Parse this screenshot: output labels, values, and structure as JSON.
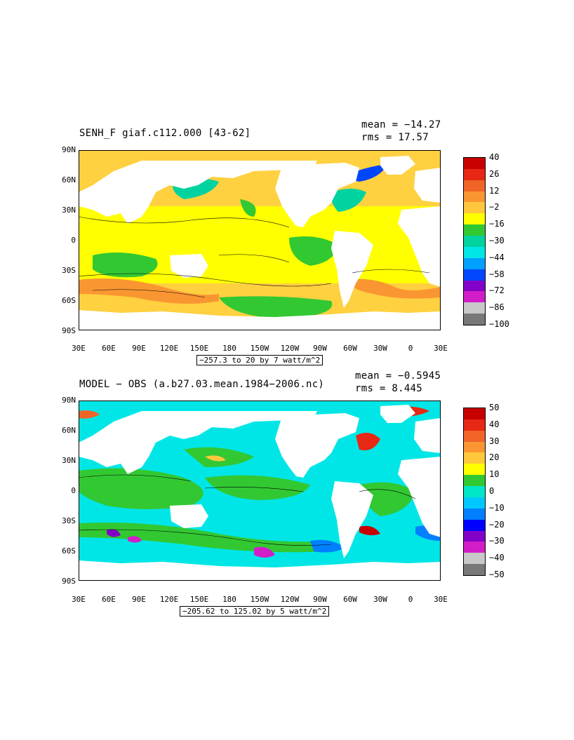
{
  "panels": [
    {
      "title": "SENH_F giaf.c112.000 [43-62]",
      "mean_label": "mean = −14.27",
      "rms_label": "rms = 17.57",
      "range_label": "−257.3 to 20 by 7 watt/m^2",
      "colorbar_labels": [
        "40",
        "26",
        "12",
        "−2",
        "−16",
        "−30",
        "−44",
        "−58",
        "−72",
        "−86",
        "−100"
      ],
      "colorbar_colors": [
        "#c80000",
        "#e62814",
        "#f06428",
        "#fa9632",
        "#ffc83c",
        "#ffff00",
        "#32c832",
        "#00d2a0",
        "#00e6e6",
        "#00a0ff",
        "#0046ff",
        "#8200c8",
        "#d21ec8",
        "#c8c8c8",
        "#787878"
      ],
      "ocean_color": "#ffd040"
    },
    {
      "title": "MODEL − OBS (a.b27.03.mean.1984−2006.nc)",
      "mean_label": "mean = −0.5945",
      "rms_label": "rms = 8.445",
      "range_label": "−205.62 to 125.02 by 5 watt/m^2",
      "colorbar_labels": [
        "50",
        "40",
        "30",
        "20",
        "10",
        "0",
        "−10",
        "−20",
        "−30",
        "−40",
        "−50"
      ],
      "colorbar_colors": [
        "#c80000",
        "#e62814",
        "#f06428",
        "#fa9632",
        "#ffc83c",
        "#ffff00",
        "#32c832",
        "#00e6c8",
        "#00c8ff",
        "#0080ff",
        "#0000ff",
        "#8200c8",
        "#d21ec8",
        "#c8c8c8",
        "#787878"
      ],
      "ocean_color": "#00e6e6"
    }
  ],
  "lat_labels": [
    "90N",
    "60N",
    "30N",
    "0",
    "30S",
    "60S",
    "90S"
  ],
  "lon_labels": [
    "30E",
    "60E",
    "90E",
    "120E",
    "150E",
    "180",
    "150W",
    "120W",
    "90W",
    "60W",
    "30W",
    "0",
    "30E"
  ],
  "land_color": "#ffffff"
}
